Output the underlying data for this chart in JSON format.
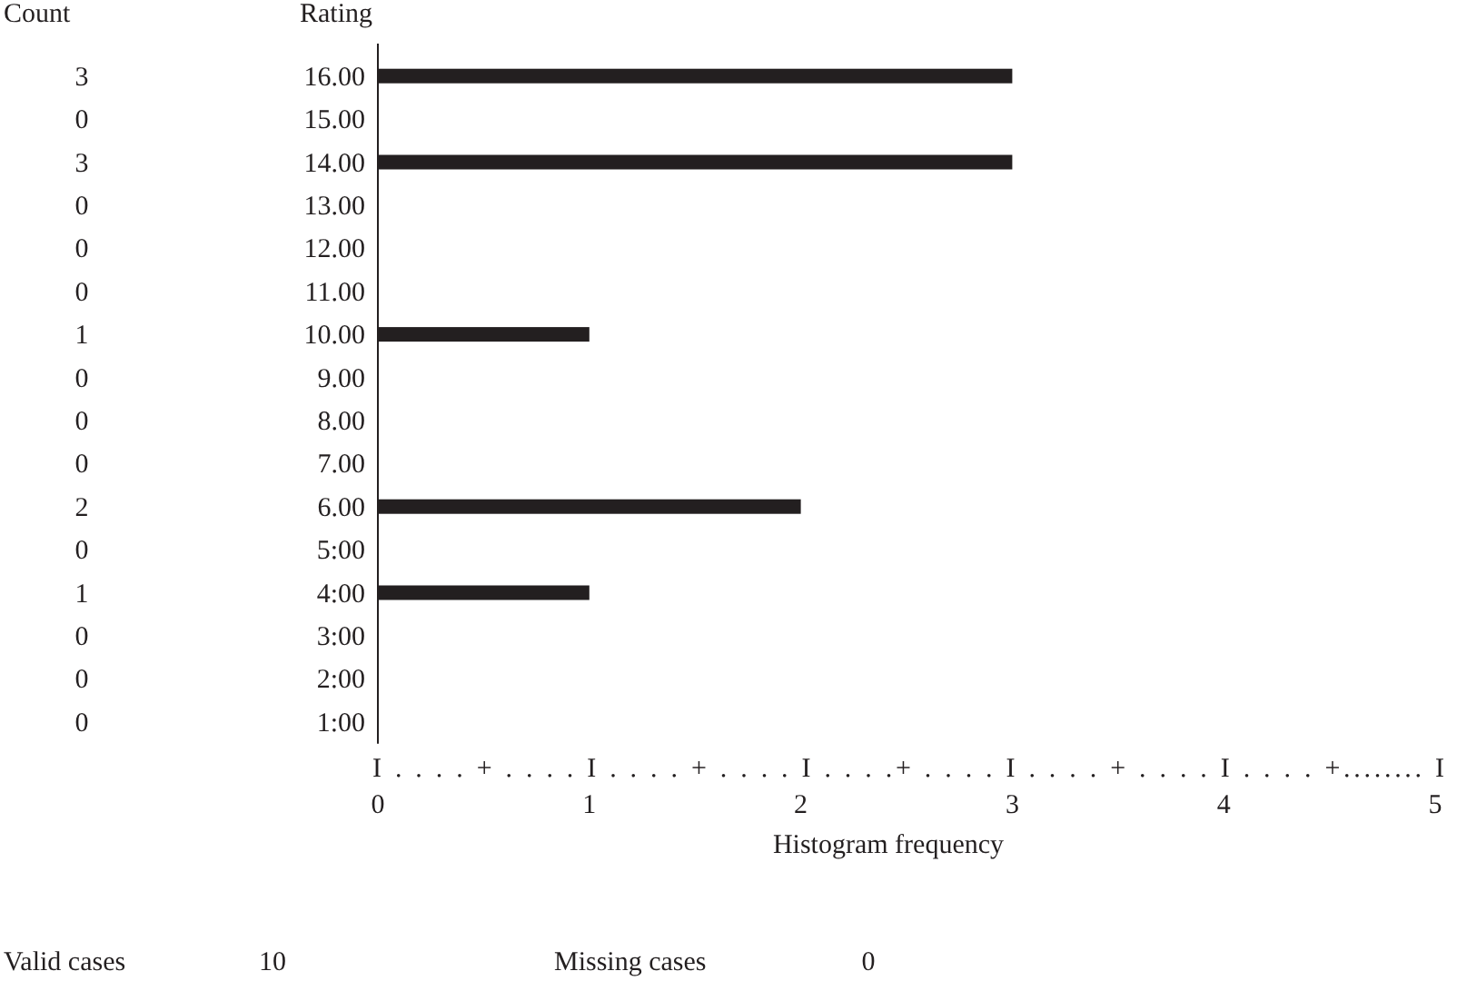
{
  "chart_data": {
    "type": "bar",
    "orientation": "horizontal",
    "ylabel": "Rating",
    "xlabel": "Histogram frequency",
    "categories": [
      "16.00",
      "15.00",
      "14.00",
      "13.00",
      "12.00",
      "11.00",
      "10.00",
      "9.00",
      "8.00",
      "7.00",
      "6.00",
      "5:00",
      "4:00",
      "3:00",
      "2:00",
      "1:00"
    ],
    "values": [
      3,
      0,
      3,
      0,
      0,
      0,
      1,
      0,
      0,
      0,
      2,
      0,
      1,
      0,
      0,
      0
    ],
    "color": "#231f20",
    "data_labels": true,
    "xlim": [
      0,
      5
    ],
    "xticks": [
      0,
      1,
      2,
      3,
      4,
      5
    ],
    "grid": false,
    "annotations": [
      "Count",
      "I . . . . + . . . . I . . . . + . . . . I . . . .+ . . . . I . . . . + . . . . I . . . . +........ I",
      "Valid cases",
      "10",
      "Missing cases",
      "0"
    ]
  }
}
